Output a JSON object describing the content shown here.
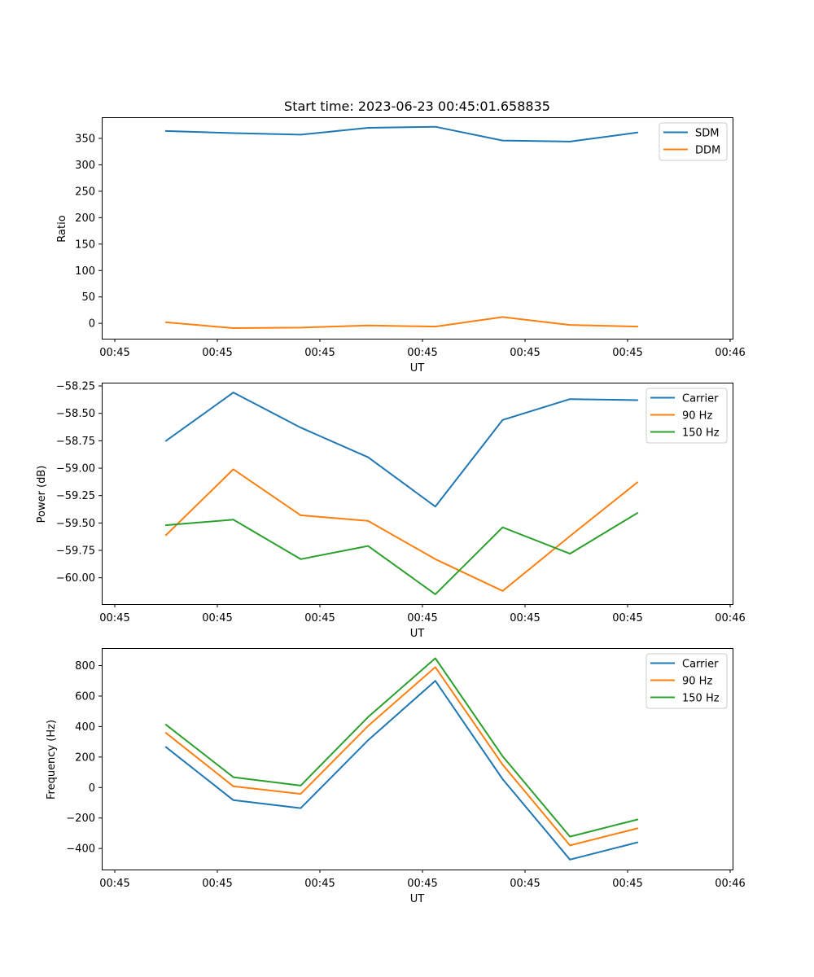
{
  "chart_data": [
    {
      "type": "line",
      "title": "Start time: 2023-06-23 00:45:01.658835",
      "xlabel": "UT",
      "ylabel": "Ratio",
      "x_tick_labels": [
        "00:45",
        "00:45",
        "00:45",
        "00:45",
        "00:45",
        "00:45",
        "00:46"
      ],
      "y_ticks": [
        0,
        50,
        100,
        150,
        200,
        250,
        300,
        350
      ],
      "ylim": [
        -29,
        390
      ],
      "legend_position": "top-right",
      "grid": false,
      "series": [
        {
          "name": "SDM",
          "color": "#1f77b4",
          "values": [
            364,
            360,
            357,
            370,
            372,
            346,
            344,
            361
          ]
        },
        {
          "name": "DDM",
          "color": "#ff7f0e",
          "values": [
            2,
            -9,
            -8,
            -4,
            -6,
            12,
            -3,
            -6
          ]
        }
      ]
    },
    {
      "type": "line",
      "title": "",
      "xlabel": "UT",
      "ylabel": "Power (dB)",
      "x_tick_labels": [
        "00:45",
        "00:45",
        "00:45",
        "00:45",
        "00:45",
        "00:45",
        "00:46"
      ],
      "y_ticks": [
        -60.0,
        -59.75,
        -59.5,
        -59.25,
        -59.0,
        -58.75,
        -58.5,
        -58.25
      ],
      "y_tick_labels": [
        "−60.00",
        "−59.75",
        "−59.50",
        "−59.25",
        "−59.00",
        "−58.75",
        "−58.50",
        "−58.25"
      ],
      "ylim": [
        -60.24,
        -58.22
      ],
      "legend_position": "top-right",
      "grid": false,
      "series": [
        {
          "name": "Carrier",
          "color": "#1f77b4",
          "values": [
            -58.75,
            -58.31,
            -58.63,
            -58.9,
            -59.35,
            -58.56,
            -58.37,
            -58.38
          ]
        },
        {
          "name": "90 Hz",
          "color": "#ff7f0e",
          "values": [
            -59.61,
            -59.01,
            -59.43,
            -59.48,
            -59.83,
            -60.12,
            -59.62,
            -59.13
          ]
        },
        {
          "name": "150 Hz",
          "color": "#2ca02c",
          "values": [
            -59.52,
            -59.47,
            -59.83,
            -59.71,
            -60.15,
            -59.54,
            -59.78,
            -59.41
          ]
        }
      ]
    },
    {
      "type": "line",
      "title": "",
      "xlabel": "UT",
      "ylabel": "Frequency (Hz)",
      "x_tick_labels": [
        "00:45",
        "00:45",
        "00:45",
        "00:45",
        "00:45",
        "00:45",
        "00:46"
      ],
      "y_ticks": [
        -400,
        -200,
        0,
        200,
        400,
        600,
        800
      ],
      "y_tick_labels": [
        "−400",
        "−200",
        "0",
        "200",
        "400",
        "600",
        "800"
      ],
      "ylim": [
        -538,
        915
      ],
      "legend_position": "top-right",
      "grid": false,
      "series": [
        {
          "name": "Carrier",
          "color": "#1f77b4",
          "values": [
            265,
            -83,
            -135,
            310,
            700,
            55,
            -473,
            -360
          ]
        },
        {
          "name": "90 Hz",
          "color": "#ff7f0e",
          "values": [
            358,
            8,
            -42,
            404,
            790,
            150,
            -380,
            -268
          ]
        },
        {
          "name": "150 Hz",
          "color": "#2ca02c",
          "values": [
            412,
            68,
            13,
            462,
            848,
            205,
            -322,
            -210
          ]
        }
      ]
    }
  ]
}
